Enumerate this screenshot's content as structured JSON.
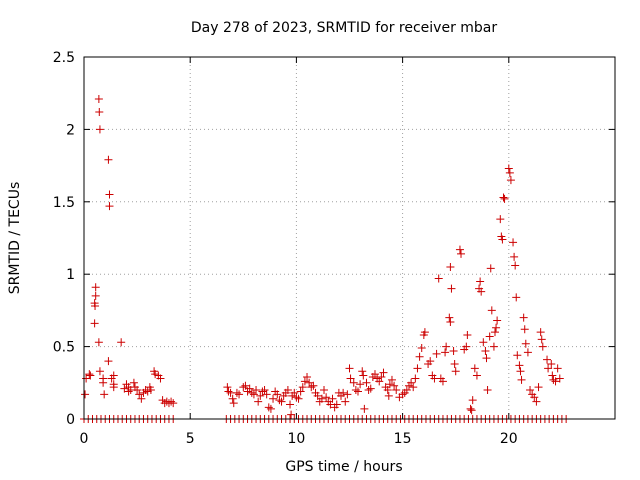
{
  "chart_data": {
    "type": "scatter",
    "title": "Day 278 of 2023, SRMTID for receiver mbar",
    "xlabel": "GPS time / hours",
    "ylabel": "SRMTID / TECUs",
    "xlim": [
      0,
      25
    ],
    "ylim": [
      0,
      2.5
    ],
    "xticks": [
      0,
      5,
      10,
      15,
      20
    ],
    "xtick_labels": [
      "0",
      "5",
      "10",
      "15",
      "20"
    ],
    "yticks": [
      0,
      0.5,
      1,
      1.5,
      2,
      2.5
    ],
    "ytick_labels": [
      "0",
      "0.5",
      "1",
      "1.5",
      "2",
      "2.5"
    ],
    "grid": true,
    "marker": "+",
    "color": "#cc0000",
    "zero_segments": [
      [
        0,
        4.3
      ],
      [
        6.7,
        22.7
      ]
    ],
    "zero_step": 0.2,
    "series": [
      {
        "name": "SRMTID",
        "points": [
          [
            0.05,
            0.17
          ],
          [
            0.1,
            0.28
          ],
          [
            0.25,
            0.31
          ],
          [
            0.3,
            0.3
          ],
          [
            0.5,
            0.66
          ],
          [
            0.5,
            0.8
          ],
          [
            0.55,
            0.85
          ],
          [
            0.55,
            0.91
          ],
          [
            0.52,
            0.78
          ],
          [
            0.7,
            2.21
          ],
          [
            0.72,
            2.12
          ],
          [
            0.75,
            2.0
          ],
          [
            0.7,
            0.53
          ],
          [
            0.75,
            0.33
          ],
          [
            0.9,
            0.28
          ],
          [
            0.9,
            0.25
          ],
          [
            0.95,
            0.17
          ],
          [
            1.15,
            1.79
          ],
          [
            1.2,
            1.55
          ],
          [
            1.2,
            1.47
          ],
          [
            1.15,
            0.4
          ],
          [
            1.3,
            0.28
          ],
          [
            1.4,
            0.3
          ],
          [
            1.4,
            0.24
          ],
          [
            1.4,
            0.22
          ],
          [
            1.75,
            0.53
          ],
          [
            1.9,
            0.21
          ],
          [
            2.0,
            0.24
          ],
          [
            2.1,
            0.19
          ],
          [
            2.1,
            0.22
          ],
          [
            2.2,
            0.2
          ],
          [
            2.35,
            0.25
          ],
          [
            2.4,
            0.22
          ],
          [
            2.5,
            0.2
          ],
          [
            2.6,
            0.17
          ],
          [
            2.7,
            0.14
          ],
          [
            2.8,
            0.18
          ],
          [
            2.9,
            0.2
          ],
          [
            3.0,
            0.19
          ],
          [
            3.1,
            0.22
          ],
          [
            3.15,
            0.2
          ],
          [
            3.3,
            0.33
          ],
          [
            3.35,
            0.31
          ],
          [
            3.5,
            0.3
          ],
          [
            3.6,
            0.28
          ],
          [
            3.7,
            0.13
          ],
          [
            3.8,
            0.11
          ],
          [
            3.9,
            0.12
          ],
          [
            4.0,
            0.11
          ],
          [
            4.1,
            0.12
          ],
          [
            4.2,
            0.11
          ],
          [
            6.75,
            0.22
          ],
          [
            6.8,
            0.19
          ],
          [
            6.9,
            0.18
          ],
          [
            7.0,
            0.14
          ],
          [
            7.05,
            0.11
          ],
          [
            7.2,
            0.18
          ],
          [
            7.3,
            0.17
          ],
          [
            7.5,
            0.22
          ],
          [
            7.6,
            0.23
          ],
          [
            7.7,
            0.19
          ],
          [
            7.8,
            0.21
          ],
          [
            7.9,
            0.18
          ],
          [
            8.0,
            0.17
          ],
          [
            8.1,
            0.2
          ],
          [
            8.2,
            0.12
          ],
          [
            8.3,
            0.16
          ],
          [
            8.4,
            0.19
          ],
          [
            8.5,
            0.2
          ],
          [
            8.6,
            0.17
          ],
          [
            8.7,
            0.08
          ],
          [
            8.8,
            0.07
          ],
          [
            8.9,
            0.14
          ],
          [
            9.0,
            0.19
          ],
          [
            9.1,
            0.17
          ],
          [
            9.2,
            0.13
          ],
          [
            9.3,
            0.12
          ],
          [
            9.4,
            0.16
          ],
          [
            9.5,
            0.18
          ],
          [
            9.6,
            0.2
          ],
          [
            9.7,
            0.1
          ],
          [
            9.75,
            0.03
          ],
          [
            9.8,
            0.16
          ],
          [
            9.9,
            0.18
          ],
          [
            10.0,
            0.15
          ],
          [
            10.1,
            0.14
          ],
          [
            10.2,
            0.19
          ],
          [
            10.3,
            0.22
          ],
          [
            10.4,
            0.26
          ],
          [
            10.5,
            0.29
          ],
          [
            10.6,
            0.25
          ],
          [
            10.7,
            0.22
          ],
          [
            10.8,
            0.23
          ],
          [
            10.9,
            0.18
          ],
          [
            11.0,
            0.16
          ],
          [
            11.1,
            0.12
          ],
          [
            11.2,
            0.14
          ],
          [
            11.3,
            0.2
          ],
          [
            11.4,
            0.15
          ],
          [
            11.5,
            0.12
          ],
          [
            11.6,
            0.1
          ],
          [
            11.7,
            0.14
          ],
          [
            11.8,
            0.08
          ],
          [
            11.9,
            0.1
          ],
          [
            12.0,
            0.18
          ],
          [
            12.1,
            0.16
          ],
          [
            12.2,
            0.18
          ],
          [
            12.3,
            0.12
          ],
          [
            12.4,
            0.17
          ],
          [
            12.5,
            0.35
          ],
          [
            12.55,
            0.28
          ],
          [
            12.7,
            0.25
          ],
          [
            12.8,
            0.2
          ],
          [
            12.9,
            0.19
          ],
          [
            13.0,
            0.24
          ],
          [
            13.1,
            0.33
          ],
          [
            13.15,
            0.3
          ],
          [
            13.2,
            0.07
          ],
          [
            13.3,
            0.25
          ],
          [
            13.4,
            0.2
          ],
          [
            13.5,
            0.21
          ],
          [
            13.6,
            0.29
          ],
          [
            13.7,
            0.31
          ],
          [
            13.8,
            0.28
          ],
          [
            13.9,
            0.26
          ],
          [
            14.0,
            0.29
          ],
          [
            14.1,
            0.32
          ],
          [
            14.2,
            0.22
          ],
          [
            14.3,
            0.2
          ],
          [
            14.35,
            0.16
          ],
          [
            14.4,
            0.24
          ],
          [
            14.5,
            0.27
          ],
          [
            14.6,
            0.23
          ],
          [
            14.7,
            0.2
          ],
          [
            14.85,
            0.15
          ],
          [
            15.0,
            0.17
          ],
          [
            15.1,
            0.18
          ],
          [
            15.2,
            0.2
          ],
          [
            15.3,
            0.23
          ],
          [
            15.4,
            0.25
          ],
          [
            15.5,
            0.22
          ],
          [
            15.6,
            0.28
          ],
          [
            15.7,
            0.35
          ],
          [
            15.8,
            0.43
          ],
          [
            15.9,
            0.49
          ],
          [
            16.0,
            0.58
          ],
          [
            16.05,
            0.6
          ],
          [
            16.2,
            0.38
          ],
          [
            16.3,
            0.4
          ],
          [
            16.4,
            0.3
          ],
          [
            16.5,
            0.28
          ],
          [
            16.6,
            0.45
          ],
          [
            16.7,
            0.97
          ],
          [
            16.8,
            0.28
          ],
          [
            16.9,
            0.26
          ],
          [
            17.0,
            0.46
          ],
          [
            17.05,
            0.5
          ],
          [
            17.2,
            0.7
          ],
          [
            17.25,
            0.67
          ],
          [
            17.3,
            0.9
          ],
          [
            17.25,
            1.05
          ],
          [
            17.4,
            0.47
          ],
          [
            17.45,
            0.38
          ],
          [
            17.5,
            0.33
          ],
          [
            17.7,
            1.17
          ],
          [
            17.75,
            1.14
          ],
          [
            17.9,
            0.48
          ],
          [
            18.0,
            0.5
          ],
          [
            18.05,
            0.58
          ],
          [
            18.2,
            0.07
          ],
          [
            18.25,
            0.06
          ],
          [
            18.3,
            0.13
          ],
          [
            18.4,
            0.35
          ],
          [
            18.5,
            0.3
          ],
          [
            18.6,
            0.9
          ],
          [
            18.65,
            0.95
          ],
          [
            18.7,
            0.88
          ],
          [
            18.8,
            0.53
          ],
          [
            18.9,
            0.47
          ],
          [
            18.95,
            0.42
          ],
          [
            19.0,
            0.2
          ],
          [
            19.1,
            0.57
          ],
          [
            19.15,
            1.04
          ],
          [
            19.2,
            0.75
          ],
          [
            19.3,
            0.5
          ],
          [
            19.35,
            0.6
          ],
          [
            19.4,
            0.63
          ],
          [
            19.45,
            0.68
          ],
          [
            19.6,
            1.38
          ],
          [
            19.65,
            1.26
          ],
          [
            19.7,
            1.24
          ],
          [
            19.75,
            1.53
          ],
          [
            19.8,
            1.52
          ],
          [
            20.0,
            1.73
          ],
          [
            20.05,
            1.7
          ],
          [
            20.1,
            1.65
          ],
          [
            20.2,
            1.22
          ],
          [
            20.25,
            1.12
          ],
          [
            20.3,
            1.06
          ],
          [
            20.35,
            0.84
          ],
          [
            20.4,
            0.44
          ],
          [
            20.5,
            0.37
          ],
          [
            20.55,
            0.33
          ],
          [
            20.6,
            0.27
          ],
          [
            20.7,
            0.7
          ],
          [
            20.75,
            0.62
          ],
          [
            20.8,
            0.52
          ],
          [
            20.9,
            0.46
          ],
          [
            21.0,
            0.2
          ],
          [
            21.1,
            0.17
          ],
          [
            21.2,
            0.15
          ],
          [
            21.3,
            0.12
          ],
          [
            21.4,
            0.22
          ],
          [
            21.5,
            0.6
          ],
          [
            21.55,
            0.55
          ],
          [
            21.6,
            0.5
          ],
          [
            21.8,
            0.41
          ],
          [
            21.85,
            0.35
          ],
          [
            22.0,
            0.38
          ],
          [
            22.05,
            0.3
          ],
          [
            22.1,
            0.27
          ],
          [
            22.2,
            0.26
          ],
          [
            22.3,
            0.35
          ],
          [
            22.4,
            0.28
          ]
        ]
      }
    ]
  }
}
